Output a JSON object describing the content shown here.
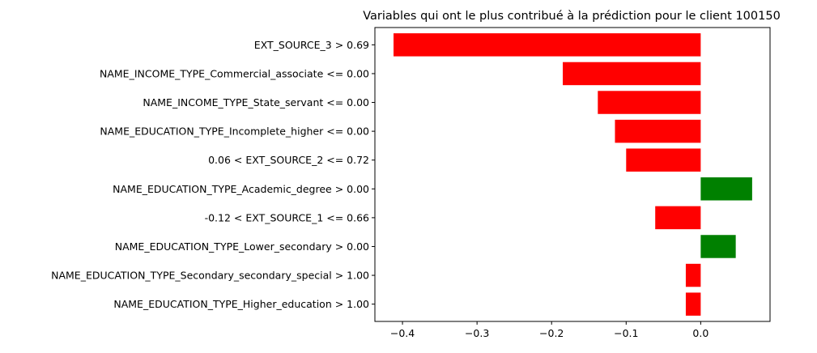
{
  "chart_data": {
    "type": "bar",
    "orientation": "horizontal",
    "title": "Variables qui ont le plus contribué à la prédiction pour le client 100150",
    "xlabel": "",
    "ylabel": "",
    "categories": [
      "EXT_SOURCE_3 > 0.69",
      "NAME_INCOME_TYPE_Commercial_associate <= 0.00",
      "NAME_INCOME_TYPE_State_servant <= 0.00",
      "NAME_EDUCATION_TYPE_Incomplete_higher <= 0.00",
      "0.06 < EXT_SOURCE_2 <= 0.72",
      "NAME_EDUCATION_TYPE_Academic_degree > 0.00",
      "-0.12 < EXT_SOURCE_1 <= 0.66",
      "NAME_EDUCATION_TYPE_Lower_secondary > 0.00",
      "NAME_EDUCATION_TYPE_Secondary_secondary_special > 1.00",
      "NAME_EDUCATION_TYPE_Higher_education > 1.00"
    ],
    "values": [
      -0.412,
      -0.185,
      -0.138,
      -0.115,
      -0.1,
      0.069,
      -0.061,
      0.047,
      -0.02,
      -0.02
    ],
    "xlim": [
      -0.437,
      0.093
    ],
    "xticks": [
      -0.4,
      -0.3,
      -0.2,
      -0.1,
      0.0
    ],
    "xtick_labels": [
      "−0.4",
      "−0.3",
      "−0.2",
      "−0.1",
      "0.0"
    ],
    "colors": {
      "positive": "#008000",
      "negative": "#ff0000"
    },
    "grid": false,
    "legend": "none"
  }
}
